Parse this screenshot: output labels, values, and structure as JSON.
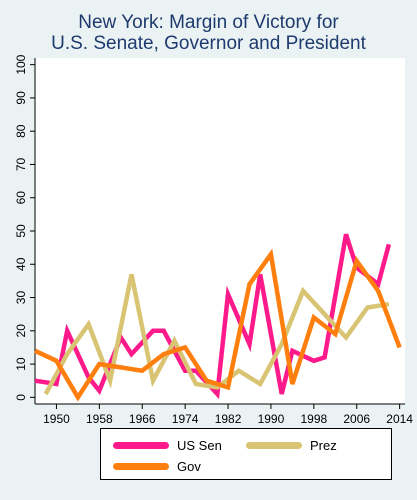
{
  "chart_data": {
    "type": "line",
    "title_lines": [
      "New York: Margin of Victory for",
      "U.S. Senate, Governor and President"
    ],
    "xlabel": "",
    "ylabel": "",
    "xlim": [
      1946,
      2015
    ],
    "ylim": [
      -2,
      102
    ],
    "x_ticks": [
      1950,
      1958,
      1966,
      1974,
      1982,
      1990,
      1998,
      2006,
      2014
    ],
    "y_ticks": [
      0,
      10,
      20,
      30,
      40,
      50,
      60,
      70,
      80,
      90,
      100
    ],
    "grid": false,
    "legend_placement": "bottom",
    "series": [
      {
        "name": "US Sen",
        "color": "#ff1a8c",
        "x": [
          1946,
          1950,
          1952,
          1956,
          1958,
          1962,
          1964,
          1968,
          1970,
          1974,
          1976,
          1980,
          1982,
          1986,
          1988,
          1992,
          1994,
          1998,
          2000,
          2004,
          2006,
          2010,
          2012
        ],
        "y": [
          5,
          4,
          20,
          6,
          2,
          18,
          13,
          20,
          20,
          8,
          8,
          1,
          31,
          16,
          37,
          1,
          14,
          11,
          12,
          49,
          39,
          34,
          46
        ]
      },
      {
        "name": "Prez",
        "color": "#d8c472",
        "x": [
          1948,
          1952,
          1956,
          1960,
          1964,
          1968,
          1972,
          1976,
          1980,
          1984,
          1988,
          1992,
          1996,
          2000,
          2004,
          2008,
          2012
        ],
        "y": [
          1,
          13,
          22,
          5,
          37,
          5,
          17,
          4,
          3,
          8,
          4,
          16,
          32,
          25,
          18,
          27,
          28
        ]
      },
      {
        "name": "Gov",
        "color": "#ff7f0e",
        "x": [
          1946,
          1950,
          1954,
          1958,
          1962,
          1966,
          1970,
          1974,
          1978,
          1982,
          1986,
          1990,
          1994,
          1998,
          2002,
          2006,
          2010,
          2014
        ],
        "y": [
          14,
          11,
          0,
          10,
          9,
          8,
          13,
          15,
          5,
          3,
          34,
          43,
          4,
          24,
          19,
          41,
          32,
          15
        ]
      }
    ]
  }
}
